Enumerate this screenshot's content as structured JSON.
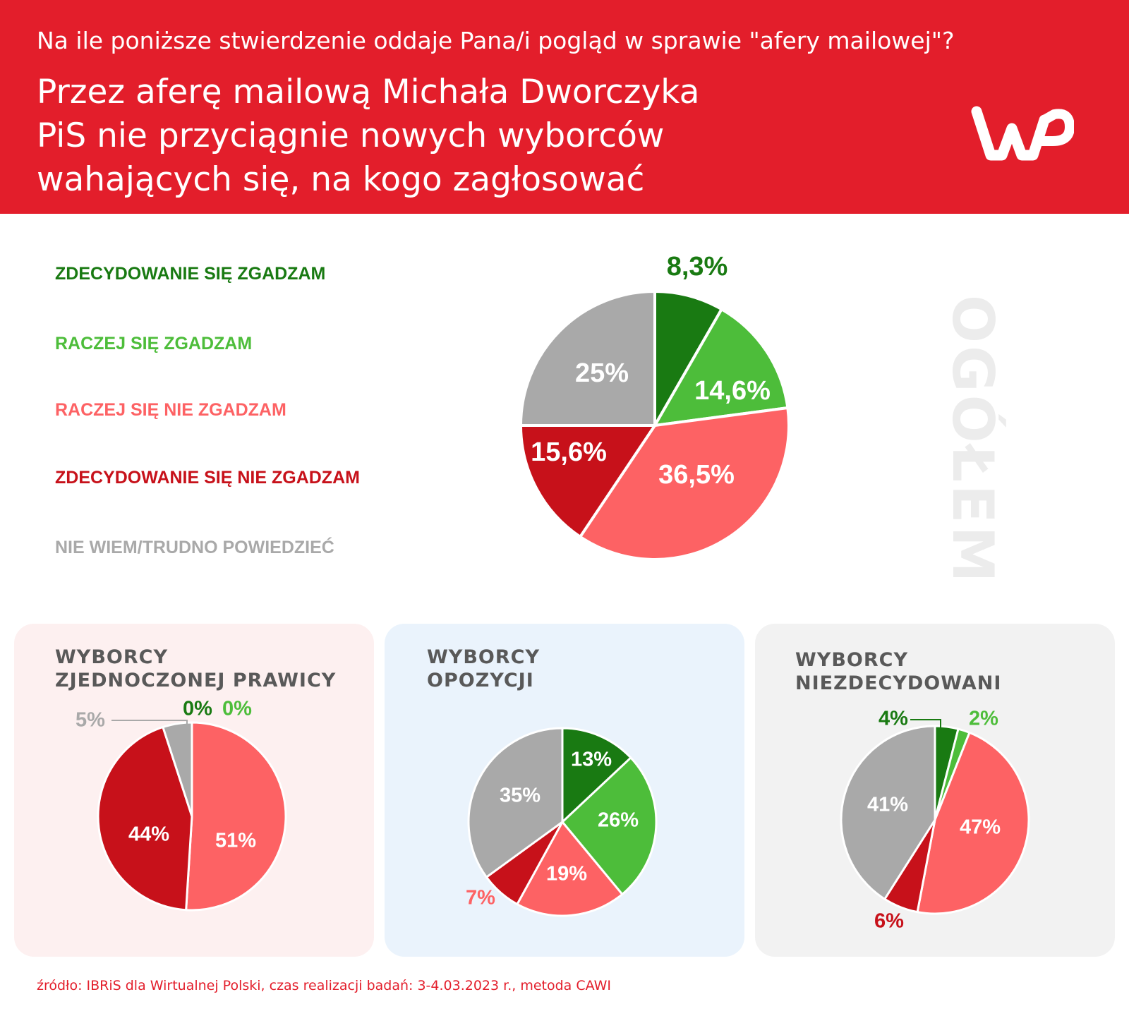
{
  "header": {
    "question": "Na ile poniższe stwierdzenie oddaje Pana/i pogląd w sprawie \"afery mailowej\"?",
    "statement_lines": [
      "Przez aferę mailową Michała Dworczyka",
      "PiS nie przyciągnie nowych wyborców",
      "wahających się, na kogo zagłosować"
    ],
    "logo_text": "WP"
  },
  "legend": [
    {
      "label": "ZDECYDOWANIE SIĘ ZGADZAM",
      "color": "#197a12"
    },
    {
      "label": "RACZEJ SIĘ ZGADZAM",
      "color": "#4dbd3a"
    },
    {
      "label": "RACZEJ SIĘ NIE ZGADZAM",
      "color": "#fd6264"
    },
    {
      "label": "ZDECYDOWANIE SIĘ NIE ZGADZAM",
      "color": "#c7111a"
    },
    {
      "label": "NIE WIEM/TRUDNO POWIEDZIEĆ",
      "color": "#a9a9a9"
    }
  ],
  "side_label": "OGÓŁEM",
  "chart_data": [
    {
      "type": "pie",
      "title": "OGÓŁEM",
      "categories": [
        "ZDECYDOWANIE SIĘ ZGADZAM",
        "RACZEJ SIĘ ZGADZAM",
        "RACZEJ SIĘ NIE ZGADZAM",
        "ZDECYDOWANIE SIĘ NIE ZGADZAM",
        "NIE WIEM/TRUDNO POWIEDZIEĆ"
      ],
      "values": [
        8.3,
        14.6,
        36.5,
        15.6,
        25
      ],
      "labels": [
        "8,3%",
        "14,6%",
        "36,5%",
        "15,6%",
        "25%"
      ]
    },
    {
      "type": "pie",
      "title": "WYBORCY ZJEDNOCZONEJ PRAWICY",
      "title_lines": [
        "WYBORCY",
        "ZJEDNOCZONEJ PRAWICY"
      ],
      "categories": [
        "ZDECYDOWANIE SIĘ ZGADZAM",
        "RACZEJ SIĘ ZGADZAM",
        "RACZEJ SIĘ NIE ZGADZAM",
        "ZDECYDOWANIE SIĘ NIE ZGADZAM",
        "NIE WIEM/TRUDNO POWIEDZIEĆ"
      ],
      "values": [
        0,
        0,
        51,
        44,
        5
      ],
      "labels": [
        "0%",
        "0%",
        "51%",
        "44%",
        "5%"
      ]
    },
    {
      "type": "pie",
      "title": "WYBORCY OPOZYCJI",
      "title_lines": [
        "WYBORCY",
        "OPOZYCJI"
      ],
      "categories": [
        "ZDECYDOWANIE SIĘ ZGADZAM",
        "RACZEJ SIĘ ZGADZAM",
        "RACZEJ SIĘ NIE ZGADZAM",
        "ZDECYDOWANIE SIĘ NIE ZGADZAM",
        "NIE WIEM/TRUDNO POWIEDZIEĆ"
      ],
      "values": [
        13,
        26,
        19,
        7,
        35
      ],
      "labels": [
        "13%",
        "26%",
        "19%",
        "7%",
        "35%"
      ]
    },
    {
      "type": "pie",
      "title": "WYBORCY NIEZDECYDOWANI",
      "title_lines": [
        "WYBORCY",
        "NIEZDECYDOWANI"
      ],
      "categories": [
        "ZDECYDOWANIE SIĘ ZGADZAM",
        "RACZEJ SIĘ ZGADZAM",
        "RACZEJ SIĘ NIE ZGADZAM",
        "ZDECYDOWANIE SIĘ NIE ZGADZAM",
        "NIE WIEM/TRUDNO POWIEDZIEĆ"
      ],
      "values": [
        4,
        2,
        47,
        6,
        41
      ],
      "labels": [
        "4%",
        "2%",
        "47%",
        "6%",
        "41%"
      ]
    }
  ],
  "panel_colors": [
    "#fdf0f0",
    "#eaf3fc",
    "#f2f2f2"
  ],
  "source": "źródło: IBRiS dla Wirtualnej Polski, czas realizacji badań: 3-4.03.2023 r., metoda CAWI"
}
